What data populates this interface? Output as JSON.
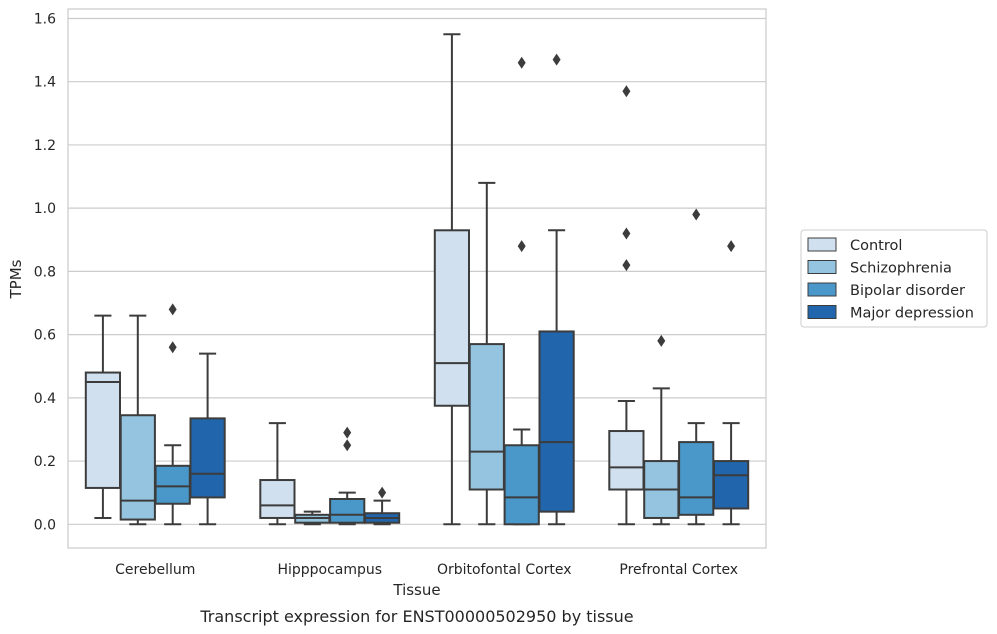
{
  "chart_data": {
    "type": "boxplot",
    "caption": "Transcript expression for ENST00000502950 by tissue",
    "xlabel": "Tissue",
    "ylabel": "TPMs",
    "ylim": [
      -0.075,
      1.63
    ],
    "yticks": [
      "0.0",
      "0.2",
      "0.4",
      "0.6",
      "0.8",
      "1.0",
      "1.2",
      "1.4",
      "1.6"
    ],
    "grid": "horizontal",
    "legend_position": "right",
    "categories": [
      "Cerebellum",
      "Hipppocampus",
      "Orbitofontal Cortex",
      "Prefrontal Cortex"
    ],
    "series": [
      {
        "name": "Control",
        "color": "#d0e0ef",
        "boxes": [
          {
            "whislo": 0.02,
            "q1": 0.115,
            "med": 0.45,
            "q3": 0.48,
            "whishi": 0.66,
            "fliers": []
          },
          {
            "whislo": 0.0,
            "q1": 0.02,
            "med": 0.06,
            "q3": 0.14,
            "whishi": 0.32,
            "fliers": []
          },
          {
            "whislo": 0.0,
            "q1": 0.375,
            "med": 0.51,
            "q3": 0.93,
            "whishi": 1.55,
            "fliers": []
          },
          {
            "whislo": 0.0,
            "q1": 0.11,
            "med": 0.18,
            "q3": 0.295,
            "whishi": 0.39,
            "fliers": [
              0.82,
              0.92,
              1.37
            ]
          }
        ]
      },
      {
        "name": "Schizophrenia",
        "color": "#94c4df",
        "boxes": [
          {
            "whislo": 0.0,
            "q1": 0.015,
            "med": 0.075,
            "q3": 0.345,
            "whishi": 0.66,
            "fliers": []
          },
          {
            "whislo": 0.0,
            "q1": 0.005,
            "med": 0.02,
            "q3": 0.03,
            "whishi": 0.04,
            "fliers": []
          },
          {
            "whislo": 0.0,
            "q1": 0.11,
            "med": 0.23,
            "q3": 0.57,
            "whishi": 1.08,
            "fliers": []
          },
          {
            "whislo": 0.0,
            "q1": 0.02,
            "med": 0.11,
            "q3": 0.2,
            "whishi": 0.43,
            "fliers": [
              0.58
            ]
          }
        ]
      },
      {
        "name": "Bipolar disorder",
        "color": "#4a98c9",
        "boxes": [
          {
            "whislo": 0.0,
            "q1": 0.065,
            "med": 0.12,
            "q3": 0.185,
            "whishi": 0.25,
            "fliers": [
              0.56,
              0.68
            ]
          },
          {
            "whislo": 0.0,
            "q1": 0.005,
            "med": 0.03,
            "q3": 0.08,
            "whishi": 0.1,
            "fliers": [
              0.25,
              0.29
            ]
          },
          {
            "whislo": 0.0,
            "q1": 0.0,
            "med": 0.085,
            "q3": 0.25,
            "whishi": 0.3,
            "fliers": [
              0.88,
              1.46
            ]
          },
          {
            "whislo": 0.0,
            "q1": 0.03,
            "med": 0.085,
            "q3": 0.26,
            "whishi": 0.32,
            "fliers": [
              0.98
            ]
          }
        ]
      },
      {
        "name": "Major depression",
        "color": "#2166ac",
        "boxes": [
          {
            "whislo": 0.0,
            "q1": 0.085,
            "med": 0.16,
            "q3": 0.335,
            "whishi": 0.54,
            "fliers": []
          },
          {
            "whislo": 0.0,
            "q1": 0.005,
            "med": 0.02,
            "q3": 0.035,
            "whishi": 0.075,
            "fliers": [
              0.1
            ]
          },
          {
            "whislo": 0.0,
            "q1": 0.04,
            "med": 0.26,
            "q3": 0.61,
            "whishi": 0.93,
            "fliers": [
              1.47
            ]
          },
          {
            "whislo": 0.0,
            "q1": 0.05,
            "med": 0.155,
            "q3": 0.2,
            "whishi": 0.32,
            "fliers": [
              0.88
            ]
          }
        ]
      }
    ]
  }
}
